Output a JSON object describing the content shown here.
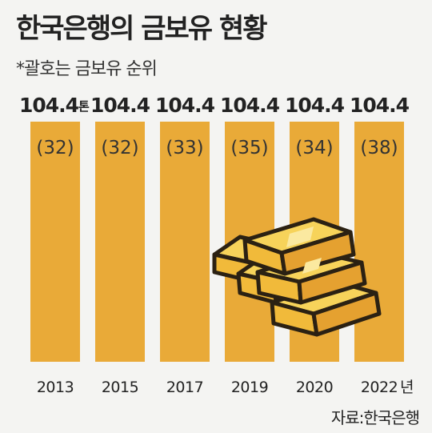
{
  "title": "한국은행의 금보유 현황",
  "subtitle": "*괄호는 금보유 순위",
  "source": "자료:한국은행",
  "colors": {
    "bar": "#E9AA38",
    "gold_fill": "#F1BA3A",
    "gold_light": "#F7D35A",
    "gold_outline": "#2B2113",
    "background": "#F4F4F2"
  },
  "chart_data": {
    "type": "bar",
    "categories": [
      "2013",
      "2015",
      "2017",
      "2019",
      "2020",
      "2022"
    ],
    "values": [
      104.4,
      104.4,
      104.4,
      104.4,
      104.4,
      104.4
    ],
    "value_labels": [
      "104.4",
      "104.4",
      "104.4",
      "104.4",
      "104.4",
      "104.4"
    ],
    "unit": "톤",
    "year_suffix": "년",
    "ranks": [
      "(32)",
      "(32)",
      "(33)",
      "(35)",
      "(34)",
      "(38)"
    ],
    "title": "한국은행의 금보유 현황",
    "subtitle": "*괄호는 금보유 순위",
    "xlabel": "",
    "ylabel": "",
    "illustration": "gold-bars-icon"
  }
}
